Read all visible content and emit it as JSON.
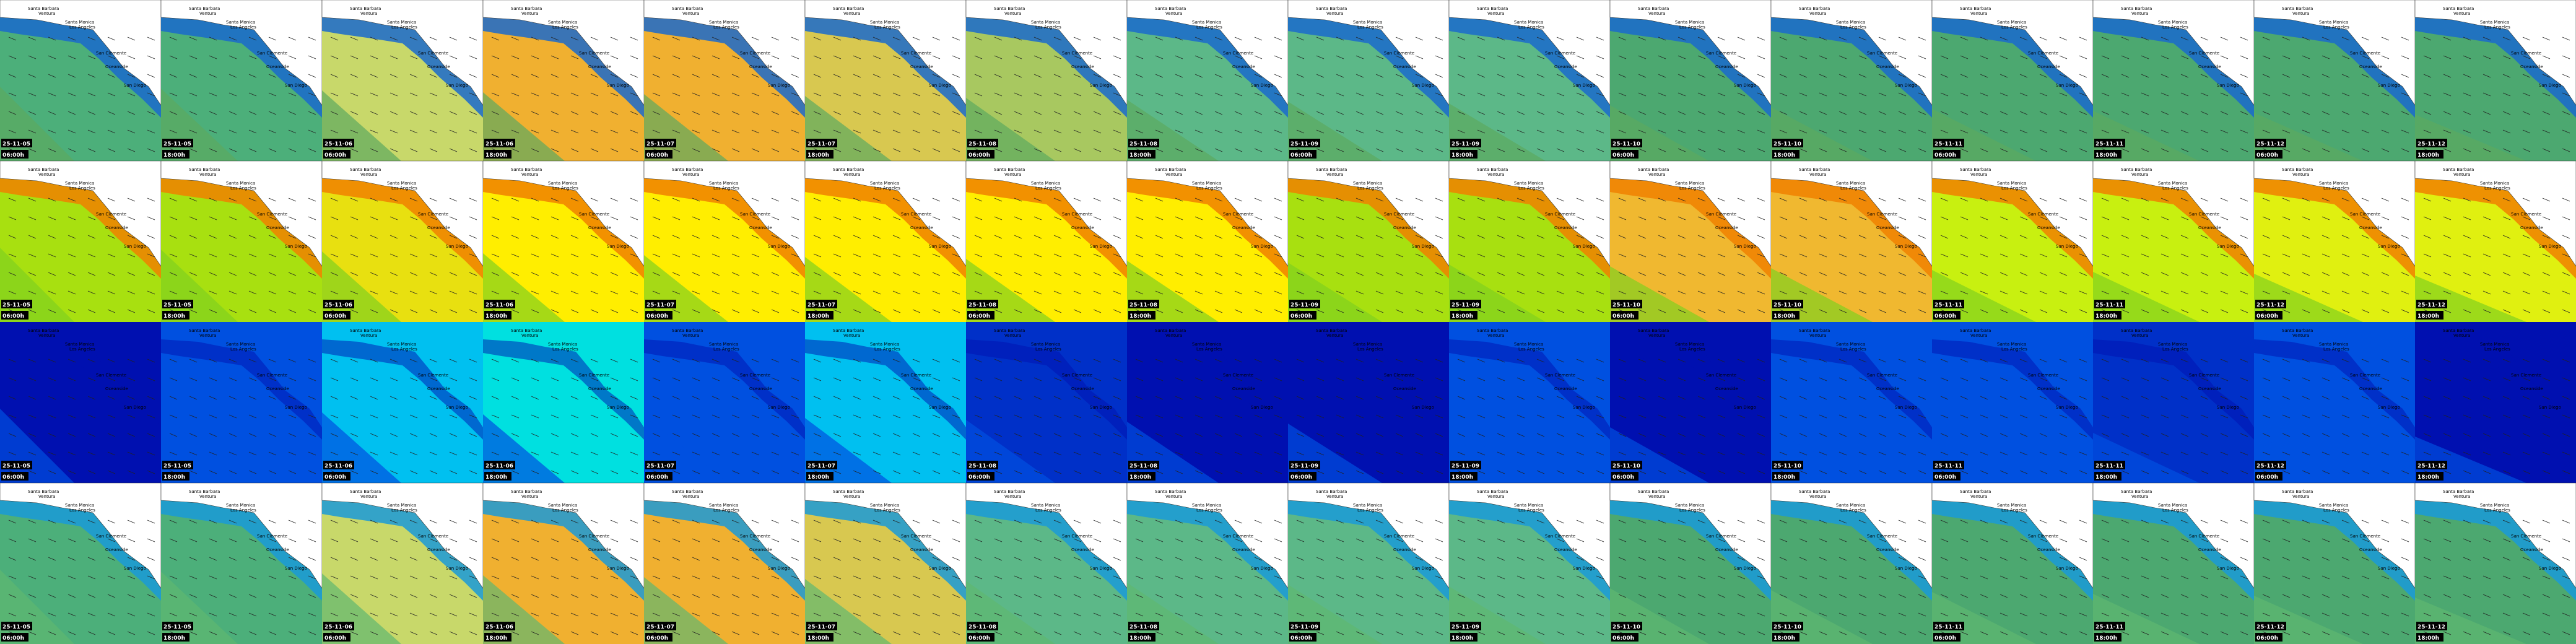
{
  "places": [
    "Santa Barbara",
    "Ventura",
    "Santa Monica",
    "Los Angeles",
    "San Clemente",
    "Oceanside",
    "San Diego"
  ],
  "frames": [
    {
      "date": "25-11-05",
      "time": "06:00h"
    },
    {
      "date": "25-11-05",
      "time": "18:00h"
    },
    {
      "date": "25-11-06",
      "time": "06:00h"
    },
    {
      "date": "25-11-06",
      "time": "18:00h"
    },
    {
      "date": "25-11-07",
      "time": "06:00h"
    },
    {
      "date": "25-11-07",
      "time": "18:00h"
    },
    {
      "date": "25-11-08",
      "time": "06:00h"
    },
    {
      "date": "25-11-08",
      "time": "18:00h"
    },
    {
      "date": "25-11-09",
      "time": "06:00h"
    },
    {
      "date": "25-11-09",
      "time": "18:00h"
    },
    {
      "date": "25-11-10",
      "time": "06:00h"
    },
    {
      "date": "25-11-10",
      "time": "18:00h"
    },
    {
      "date": "25-11-11",
      "time": "06:00h"
    },
    {
      "date": "25-11-11",
      "time": "18:00h"
    },
    {
      "date": "25-11-12",
      "time": "06:00h"
    },
    {
      "date": "25-11-12",
      "time": "18:00h"
    }
  ]
}
